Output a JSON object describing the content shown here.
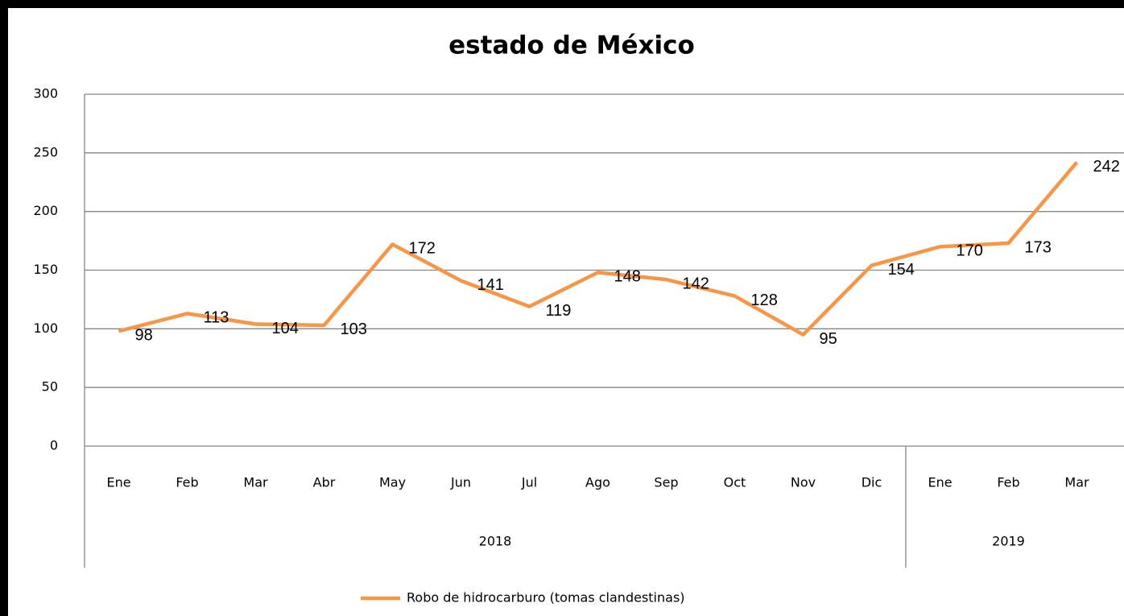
{
  "chart_data": {
    "type": "line",
    "title": "estado de México",
    "categories": [
      "Ene",
      "Feb",
      "Mar",
      "Abr",
      "May",
      "Jun",
      "Jul",
      "Ago",
      "Sep",
      "Oct",
      "Nov",
      "Dic",
      "Ene",
      "Feb",
      "Mar"
    ],
    "category_groups": [
      {
        "label": "2018",
        "size": 12
      },
      {
        "label": "2019",
        "size": 3
      }
    ],
    "series": [
      {
        "name": "Robo de hidrocarburo (tomas clandestinas)",
        "color": "#f79646",
        "values": [
          98,
          113,
          104,
          103,
          172,
          141,
          119,
          148,
          142,
          128,
          95,
          154,
          170,
          173,
          242
        ]
      }
    ],
    "ylim": [
      0,
      300
    ],
    "yticks": [
      0,
      50,
      100,
      150,
      200,
      250,
      300
    ],
    "grid": true,
    "legend": "bottom"
  }
}
